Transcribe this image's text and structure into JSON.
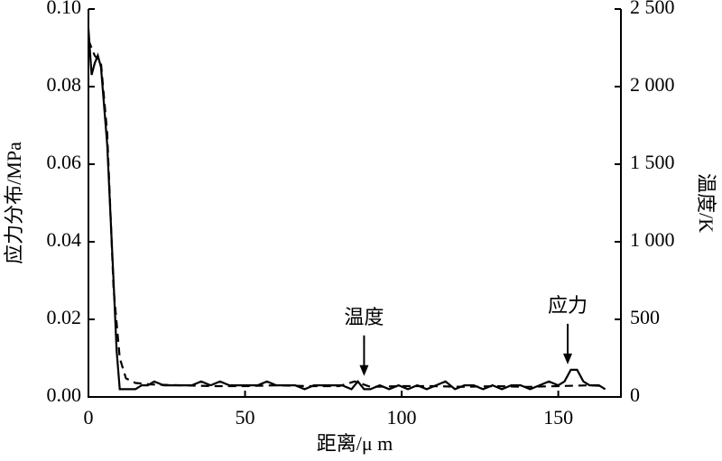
{
  "chart_data": {
    "type": "line",
    "x_label": "距离/μ m",
    "y_label": "应力分布/MPa",
    "y2_label": "温度/K",
    "xlim": [
      0,
      170
    ],
    "xticks": [
      0,
      50,
      100,
      150
    ],
    "ylim": [
      0,
      0.1
    ],
    "yticks": [
      {
        "value": 0,
        "label": "0.00"
      },
      {
        "value": 0.02,
        "label": "0.02"
      },
      {
        "value": 0.04,
        "label": "0.04"
      },
      {
        "value": 0.06,
        "label": "0.06"
      },
      {
        "value": 0.08,
        "label": "0.08"
      },
      {
        "value": 0.1,
        "label": "0.10"
      }
    ],
    "y2lim": [
      0,
      2500
    ],
    "y2ticks": [
      0,
      500,
      {
        "value": 1000,
        "label": "1 000"
      },
      {
        "value": 1500,
        "label": "1 500"
      },
      {
        "value": 2000,
        "label": "2 000"
      },
      {
        "value": 2500,
        "label": "2 500"
      }
    ],
    "series": [
      {
        "name": "应力",
        "color": "#000000",
        "dash": false,
        "x": [
          0,
          1,
          2,
          3,
          4,
          6,
          8,
          9,
          10,
          11,
          13,
          15,
          17,
          19,
          21,
          24,
          27,
          30,
          33,
          36,
          39,
          42,
          45,
          48,
          51,
          54,
          57,
          60,
          63,
          66,
          69,
          72,
          75,
          78,
          81,
          84,
          86,
          88,
          90,
          93,
          96,
          99,
          102,
          105,
          108,
          111,
          114,
          117,
          120,
          123,
          126,
          129,
          132,
          135,
          138,
          141,
          144,
          147,
          150,
          152,
          154,
          156,
          158,
          160,
          163,
          165
        ],
        "values": [
          0.095,
          0.083,
          0.086,
          0.088,
          0.085,
          0.065,
          0.03,
          0.012,
          0.002,
          0.002,
          0.002,
          0.002,
          0.003,
          0.003,
          0.004,
          0.003,
          0.003,
          0.003,
          0.003,
          0.004,
          0.003,
          0.004,
          0.003,
          0.003,
          0.003,
          0.003,
          0.004,
          0.003,
          0.003,
          0.003,
          0.002,
          0.003,
          0.003,
          0.003,
          0.003,
          0.002,
          0.004,
          0.002,
          0.002,
          0.003,
          0.002,
          0.003,
          0.002,
          0.003,
          0.002,
          0.003,
          0.004,
          0.002,
          0.003,
          0.003,
          0.002,
          0.003,
          0.002,
          0.003,
          0.003,
          0.002,
          0.003,
          0.004,
          0.003,
          0.004,
          0.007,
          0.007,
          0.004,
          0.003,
          0.003,
          0.002
        ]
      },
      {
        "name": "温度",
        "color": "#000000",
        "dash": true,
        "axis": "y2",
        "x": [
          0,
          2,
          4,
          6,
          8,
          10,
          12,
          15,
          20,
          30,
          40,
          50,
          60,
          70,
          80,
          85,
          90,
          100,
          110,
          120,
          130,
          140,
          150,
          160,
          165
        ],
        "values": [
          2300,
          2200,
          2150,
          1700,
          700,
          250,
          120,
          90,
          80,
          75,
          70,
          70,
          75,
          70,
          70,
          100,
          65,
          70,
          70,
          65,
          70,
          65,
          70,
          75,
          70
        ]
      }
    ],
    "annotations": [
      {
        "text": "温度",
        "x": 88,
        "y": 0.004
      },
      {
        "text": "应力",
        "x": 153,
        "y": 0.007
      }
    ]
  }
}
